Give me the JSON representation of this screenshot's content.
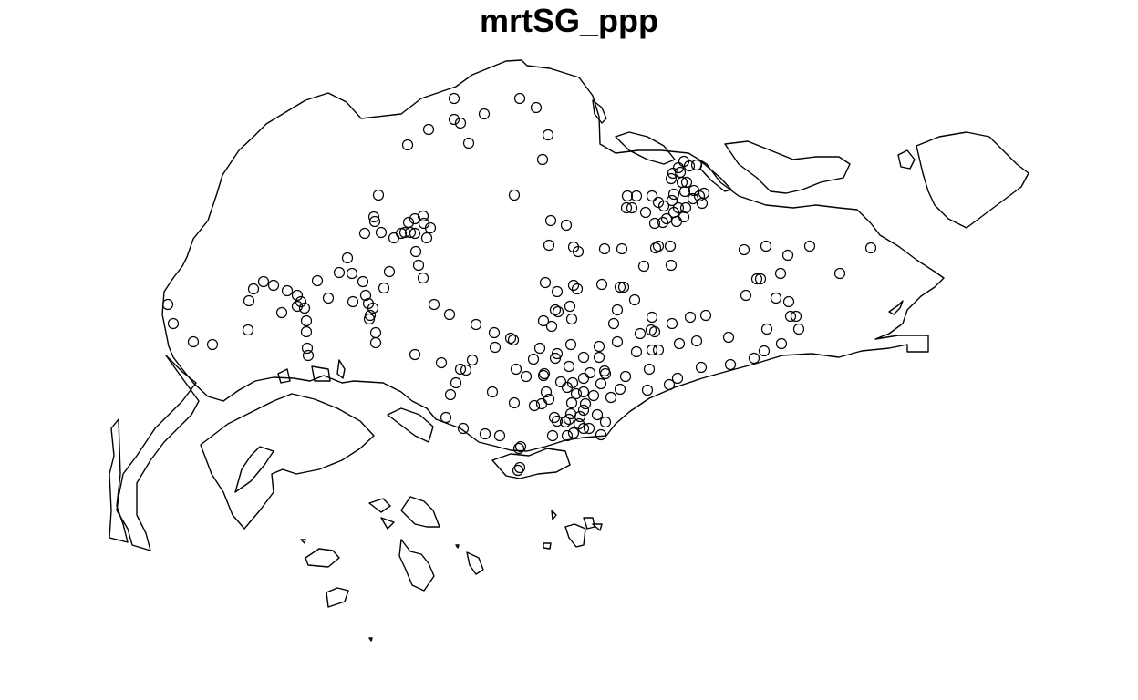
{
  "title": "mrtSG_ppp",
  "colors": {
    "background": "#ffffff",
    "outline": "#000000",
    "points": "#000000"
  },
  "point_symbol": "open-circle",
  "point_count": 196
}
